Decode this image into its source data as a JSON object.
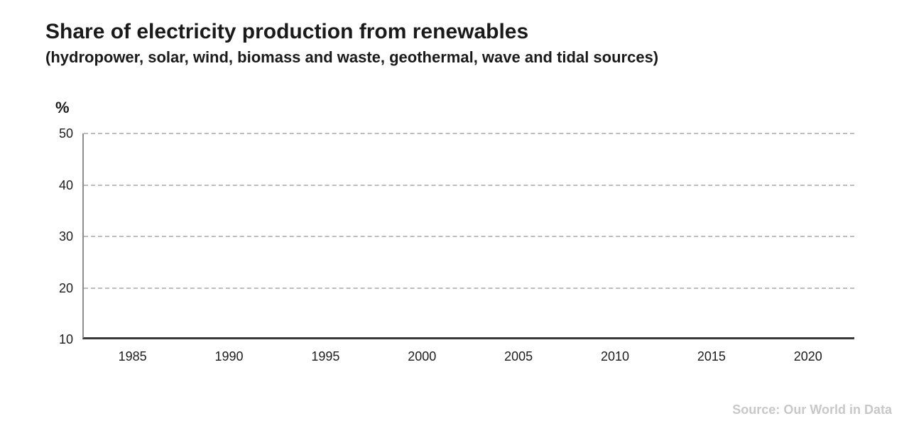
{
  "header": {
    "title": "Share of electricity production from renewables",
    "subtitle": "(hydropower, solar, wind, biomass and waste, geothermal, wave and tidal sources)"
  },
  "chart_data": {
    "type": "line",
    "title": "Share of electricity production from renewables",
    "subtitle": "(hydropower, solar, wind, biomass and waste, geothermal, wave and tidal sources)",
    "xlabel": "",
    "ylabel": "%",
    "x_ticks": [
      1985,
      1990,
      1995,
      2000,
      2005,
      2010,
      2015,
      2020
    ],
    "y_ticks": [
      10,
      20,
      30,
      40,
      50
    ],
    "xlim": [
      1982.4,
      2022.4
    ],
    "ylim": [
      10,
      50
    ],
    "grid": "horizontal-dashed",
    "legend": "none",
    "series": []
  },
  "source": {
    "label": "Source: Our World in Data"
  },
  "colors": {
    "text": "#1a1a1a",
    "tick_text": "#1c1c1c",
    "gridline": "#bdbdbd",
    "axis_left": "#8c8c8c",
    "axis_bottom": "#383838",
    "source_text": "#c8c8c8",
    "background": "#ffffff"
  }
}
